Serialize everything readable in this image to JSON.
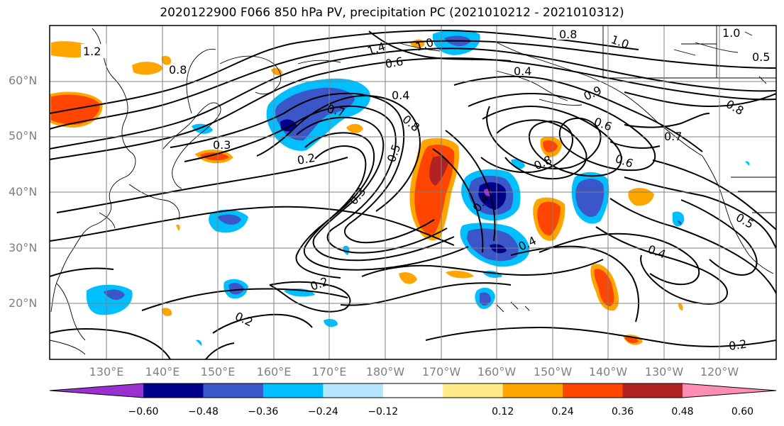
{
  "title": "2020122900 F066 850 hPa PV, precipitation PC (2021010212 - 2021010312)",
  "lat_labels": [
    "60°N",
    "50°N",
    "40°N",
    "30°N",
    "20°N"
  ],
  "lon_labels": [
    "130°E",
    "140°E",
    "150°E",
    "160°E",
    "170°E",
    "180°W",
    "170°W",
    "160°W",
    "150°W",
    "140°W",
    "130°W",
    "120°W"
  ],
  "colorbar": {
    "ticks": [
      "−0.60",
      "−0.48",
      "−0.36",
      "−0.24",
      "−0.12",
      "0.12",
      "0.24",
      "0.36",
      "0.48",
      "0.60"
    ],
    "colors": [
      "#9b30d0",
      "#00008b",
      "#3a56c8",
      "#00bfff",
      "#b3e5ff",
      "#ffffff",
      "#ffeb8a",
      "#ffa500",
      "#ff4500",
      "#b22222",
      "#ff8db4"
    ]
  },
  "contour_labels": [
    "1.2",
    "1.4",
    "1.0",
    "0.6",
    "0.8",
    "0.8",
    "1.0",
    "1.0",
    "0.5",
    "0.4",
    "0.4",
    "0.9",
    "0.7",
    "0.8",
    "0.6",
    "0.7",
    "0.6",
    "0.8",
    "0.3",
    "0.2",
    "0.5",
    "0.4",
    "0.3",
    "0.4",
    "0.5",
    "0.2",
    "0.2",
    "0.2",
    "0.8",
    "0.4"
  ]
}
